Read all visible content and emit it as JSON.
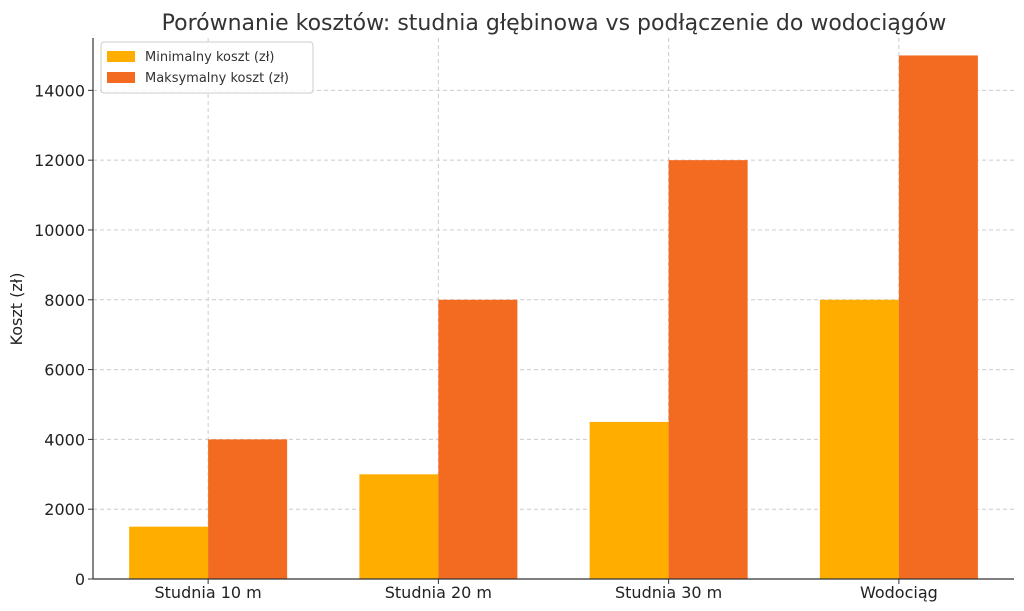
{
  "chart_data": {
    "type": "bar",
    "title": "Porównanie kosztów: studnia głębinowa vs podłączenie do wodociągów",
    "xlabel": "",
    "ylabel": "Koszt (zł)",
    "categories": [
      "Studnia 10 m",
      "Studnia 20 m",
      "Studnia 30 m",
      "Wodociąg"
    ],
    "series": [
      {
        "name": "Minimalny koszt (zł)",
        "values": [
          1500,
          3000,
          4500,
          8000
        ],
        "color": "#FFAE00"
      },
      {
        "name": "Maksymalny koszt (zł)",
        "values": [
          4000,
          8000,
          12000,
          15000
        ],
        "color": "#F26B21"
      }
    ],
    "ylim": [
      0,
      15500
    ],
    "yticks": [
      0,
      2000,
      4000,
      6000,
      8000,
      10000,
      12000,
      14000
    ],
    "grid": true,
    "legend_position": "top-left"
  }
}
